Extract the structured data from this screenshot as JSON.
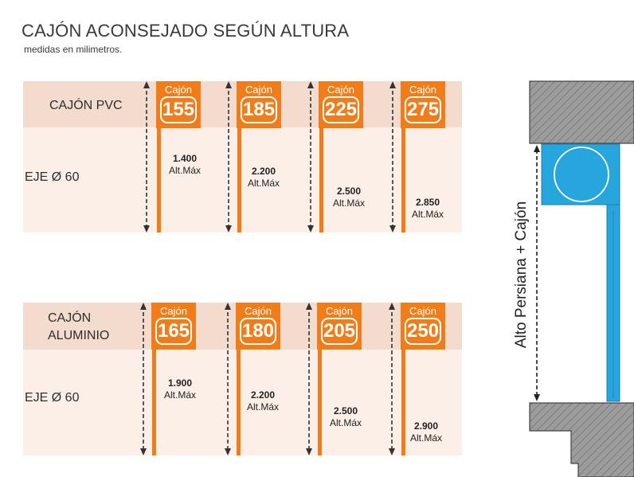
{
  "header": {
    "title": "CAJÓN ACONSEJADO SEGÚN ALTURA",
    "subtitle": "medidas en milimetros."
  },
  "sections": [
    {
      "row_label": "CAJÓN PVC",
      "shaft_label": "EJE Ø 60",
      "columns": [
        {
          "tag_small": "Cajón",
          "tag_big": "155",
          "value": "1.400",
          "unit": "Alt.Máx"
        },
        {
          "tag_small": "Cajón",
          "tag_big": "185",
          "value": "2.200",
          "unit": "Alt.Máx"
        },
        {
          "tag_small": "Cajón",
          "tag_big": "225",
          "value": "2.500",
          "unit": "Alt.Máx"
        },
        {
          "tag_small": "Cajón",
          "tag_big": "275",
          "value": "2.850",
          "unit": "Alt.Máx"
        }
      ]
    },
    {
      "row_label_line1": "CAJÓN",
      "row_label_line2": "ALUMINIO",
      "shaft_label": "EJE Ø 60",
      "columns": [
        {
          "tag_small": "Cajón",
          "tag_big": "165",
          "value": "1.900",
          "unit": "Alt.Máx"
        },
        {
          "tag_small": "Cajón",
          "tag_big": "180",
          "value": "2.200",
          "unit": "Alt.Máx"
        },
        {
          "tag_small": "Cajón",
          "tag_big": "205",
          "value": "2.500",
          "unit": "Alt.Máx"
        },
        {
          "tag_small": "Cajón",
          "tag_big": "250",
          "value": "2.900",
          "unit": "Alt.Máx"
        }
      ]
    }
  ],
  "diagram": {
    "vertical_label": "Alto Persiana + Cajón",
    "colors": {
      "orange": "#f07d1a",
      "band_top": "#f3dccd",
      "band_bottom": "#fcefe8",
      "wall_gray": "#9a9a9a",
      "box_blue": "#27a6dd"
    }
  }
}
